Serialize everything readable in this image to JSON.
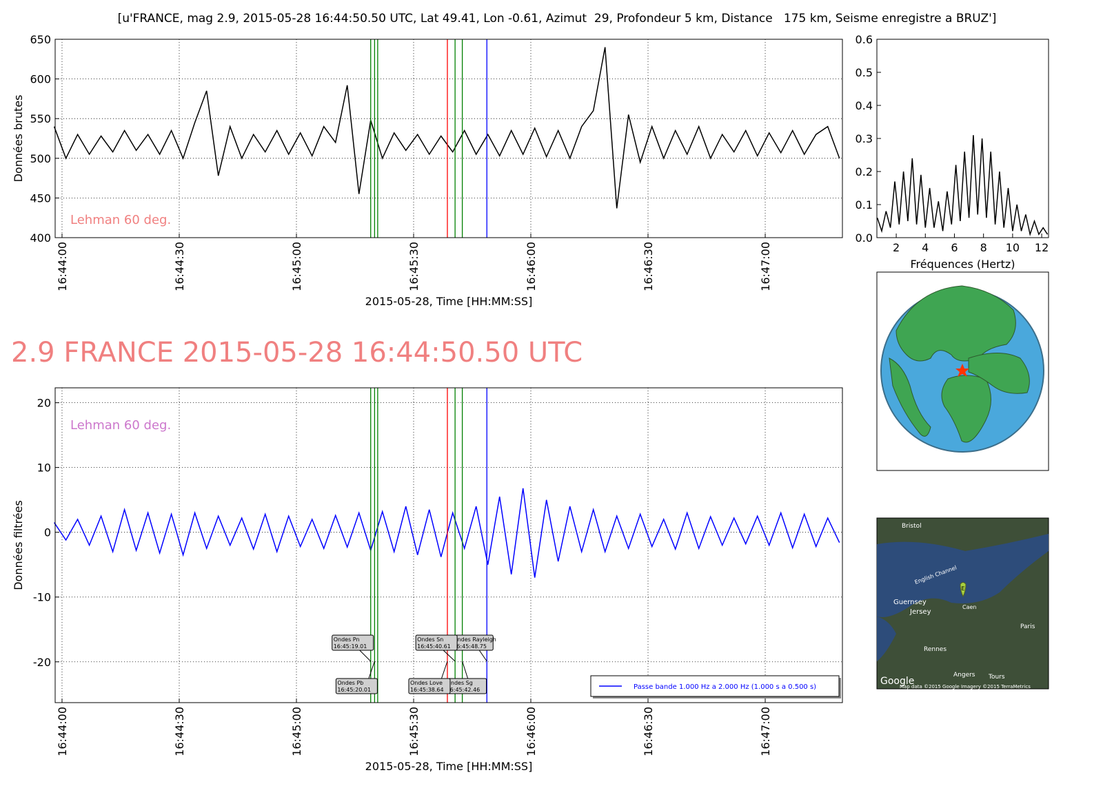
{
  "title": "[u'FRANCE, mag 2.9, 2015-05-28 16:44:50.50 UTC, Lat 49.41, Lon -0.61, Azimut  29, Profondeur 5 km, Distance   175 km, Seisme enregistre a BRUZ']",
  "heading": "2.9 FRANCE 2015-05-28 16:44:50.50 UTC",
  "chart_data": [
    {
      "type": "line",
      "ylabel": "Données brutes",
      "xlabel": "2015-05-28, Time [HH:MM:SS]",
      "xlim": [
        "16:43:58.24",
        "16:47:19.76"
      ],
      "xticks": [
        "16:44:00",
        "16:44:30",
        "16:45:00",
        "16:45:30",
        "16:46:00",
        "16:46:30",
        "16:47:00"
      ],
      "ylim": [
        400,
        650
      ],
      "yticks": [
        400,
        450,
        500,
        550,
        600,
        650
      ],
      "grid": true,
      "annotation": {
        "text": "Lehman 60 deg.",
        "color": "#f08080"
      },
      "x": [
        "16:43:58",
        "16:44:01",
        "16:44:04",
        "16:44:07",
        "16:44:10",
        "16:44:13",
        "16:44:16",
        "16:44:19",
        "16:44:22",
        "16:44:25",
        "16:44:28",
        "16:44:31",
        "16:44:34",
        "16:44:37",
        "16:44:40",
        "16:44:43",
        "16:44:46",
        "16:44:49",
        "16:44:52",
        "16:44:55",
        "16:44:58",
        "16:45:01",
        "16:45:04",
        "16:45:07",
        "16:45:10",
        "16:45:13",
        "16:45:16",
        "16:45:19",
        "16:45:22",
        "16:45:25",
        "16:45:28",
        "16:45:31",
        "16:45:34",
        "16:45:37",
        "16:45:40",
        "16:45:43",
        "16:45:46",
        "16:45:49",
        "16:45:52",
        "16:45:55",
        "16:45:58",
        "16:46:01",
        "16:46:04",
        "16:46:07",
        "16:46:10",
        "16:46:13",
        "16:46:16",
        "16:46:19",
        "16:46:22",
        "16:46:25",
        "16:46:28",
        "16:46:31",
        "16:46:34",
        "16:46:37",
        "16:46:40",
        "16:46:43",
        "16:46:46",
        "16:46:49",
        "16:46:52",
        "16:46:55",
        "16:46:58",
        "16:47:01",
        "16:47:04",
        "16:47:07",
        "16:47:10",
        "16:47:13",
        "16:47:16",
        "16:47:19"
      ],
      "series": [
        {
          "color": "#000000",
          "values": [
            540,
            500,
            530,
            505,
            528,
            508,
            535,
            510,
            530,
            505,
            535,
            500,
            545,
            585,
            478,
            540,
            500,
            530,
            508,
            535,
            505,
            532,
            503,
            540,
            520,
            592,
            455,
            548,
            500,
            532,
            510,
            530,
            505,
            528,
            508,
            535,
            505,
            530,
            503,
            535,
            505,
            538,
            502,
            535,
            500,
            540,
            560,
            640,
            437,
            555,
            495,
            540,
            500,
            535,
            505,
            540,
            500,
            530,
            508,
            535,
            503,
            532,
            507,
            535,
            505,
            530,
            540,
            500
          ]
        }
      ],
      "phases": [
        {
          "x": "16:45:19.01",
          "color": "#008000"
        },
        {
          "x": "16:45:20.01",
          "color": "#008000"
        },
        {
          "x": "16:45:20.80",
          "color": "#008000"
        },
        {
          "x": "16:45:38.64",
          "color": "#ff0000"
        },
        {
          "x": "16:45:40.61",
          "color": "#008000"
        },
        {
          "x": "16:45:42.46",
          "color": "#008000"
        },
        {
          "x": "16:45:48.75",
          "color": "#0000ff"
        }
      ]
    },
    {
      "type": "line",
      "xlabel": "Fréquences (Hertz)",
      "xlim": [
        0.67,
        12.47
      ],
      "xticks": [
        2,
        4,
        6,
        8,
        10,
        12
      ],
      "ylim": [
        0,
        0.6
      ],
      "yticks": [
        {
          "value": 0,
          "label": "0.0"
        },
        0.1,
        0.2,
        0.3,
        0.4,
        0.5,
        0.6
      ],
      "grid": false,
      "x": [
        0.7,
        1.0,
        1.3,
        1.6,
        1.9,
        2.2,
        2.5,
        2.8,
        3.1,
        3.4,
        3.7,
        4.0,
        4.3,
        4.6,
        4.9,
        5.2,
        5.5,
        5.8,
        6.1,
        6.4,
        6.7,
        7.0,
        7.3,
        7.6,
        7.9,
        8.2,
        8.5,
        8.8,
        9.1,
        9.4,
        9.7,
        10.0,
        10.3,
        10.6,
        10.9,
        11.2,
        11.5,
        11.8,
        12.1,
        12.4
      ],
      "series": [
        {
          "color": "#000000",
          "values": [
            0.06,
            0.02,
            0.08,
            0.03,
            0.17,
            0.04,
            0.2,
            0.05,
            0.24,
            0.04,
            0.19,
            0.03,
            0.15,
            0.03,
            0.11,
            0.02,
            0.14,
            0.04,
            0.22,
            0.05,
            0.26,
            0.06,
            0.31,
            0.07,
            0.3,
            0.06,
            0.26,
            0.04,
            0.2,
            0.03,
            0.15,
            0.02,
            0.1,
            0.02,
            0.07,
            0.01,
            0.05,
            0.01,
            0.03,
            0.01
          ]
        }
      ]
    },
    {
      "type": "line",
      "ylabel": "Données filtrées",
      "xlabel": "2015-05-28, Time [HH:MM:SS]",
      "xlim": [
        "16:43:58.24",
        "16:47:19.76"
      ],
      "xticks": [
        "16:44:00",
        "16:44:30",
        "16:45:00",
        "16:45:30",
        "16:46:00",
        "16:46:30",
        "16:47:00"
      ],
      "ylim": [
        -26.3,
        22.3
      ],
      "yticks": [
        -20,
        -10,
        0,
        10,
        20
      ],
      "grid": true,
      "legend": "lower right",
      "annotation": {
        "text": "Lehman 60 deg.",
        "color": "#cc77cc"
      },
      "x": [
        "16:43:58",
        "16:44:01",
        "16:44:04",
        "16:44:07",
        "16:44:10",
        "16:44:13",
        "16:44:16",
        "16:44:19",
        "16:44:22",
        "16:44:25",
        "16:44:28",
        "16:44:31",
        "16:44:34",
        "16:44:37",
        "16:44:40",
        "16:44:43",
        "16:44:46",
        "16:44:49",
        "16:44:52",
        "16:44:55",
        "16:44:58",
        "16:45:01",
        "16:45:04",
        "16:45:07",
        "16:45:10",
        "16:45:13",
        "16:45:16",
        "16:45:19",
        "16:45:22",
        "16:45:25",
        "16:45:28",
        "16:45:31",
        "16:45:34",
        "16:45:37",
        "16:45:40",
        "16:45:43",
        "16:45:46",
        "16:45:49",
        "16:45:52",
        "16:45:55",
        "16:45:58",
        "16:46:01",
        "16:46:04",
        "16:46:07",
        "16:46:10",
        "16:46:13",
        "16:46:16",
        "16:46:19",
        "16:46:22",
        "16:46:25",
        "16:46:28",
        "16:46:31",
        "16:46:34",
        "16:46:37",
        "16:46:40",
        "16:46:43",
        "16:46:46",
        "16:46:49",
        "16:46:52",
        "16:46:55",
        "16:46:58",
        "16:47:01",
        "16:47:04",
        "16:47:07",
        "16:47:10",
        "16:47:13",
        "16:47:16",
        "16:47:19"
      ],
      "series": [
        {
          "name": "Passe bande 1.000 Hz a 2.000 Hz (1.000 s a 0.500 s)",
          "color": "#0000ff",
          "values": [
            1.5,
            -1.2,
            2,
            -2,
            2.5,
            -3,
            3.5,
            -2.8,
            3,
            -3.2,
            2.8,
            -3.5,
            3,
            -2.5,
            2.5,
            -2,
            2.2,
            -2.6,
            2.8,
            -3,
            2.5,
            -2.2,
            2,
            -2.5,
            2.6,
            -2.3,
            3,
            -2.8,
            3.2,
            -3,
            4,
            -3.5,
            3.5,
            -3.8,
            3,
            -2.5,
            4,
            -5,
            5.5,
            -6.5,
            6.8,
            -7,
            5,
            -4.5,
            4,
            -3,
            3.5,
            -3,
            2.5,
            -2.5,
            2.8,
            -2.2,
            2,
            -2.6,
            3,
            -2.5,
            2.4,
            -2,
            2.2,
            -1.8,
            2.5,
            -2,
            3,
            -2.4,
            2.8,
            -2.2,
            2.2,
            -1.6
          ]
        }
      ],
      "phases": [
        {
          "name": "Ondes Pn",
          "x": "16:45:19.01",
          "color": "#008000"
        },
        {
          "name": "Ondes Pb",
          "x": "16:45:20.01",
          "color": "#008000"
        },
        {
          "x": "16:45:20.80",
          "color": "#008000"
        },
        {
          "name": "Ondes Love",
          "x": "16:45:38.64",
          "color": "#ff0000"
        },
        {
          "name": "Ondes Sn",
          "x": "16:45:40.61",
          "color": "#008000"
        },
        {
          "name": "Ondes Sg",
          "x": "16:45:42.46",
          "color": "#008000"
        },
        {
          "name": "Ondes Rayleigh",
          "x": "16:45:48.75",
          "color": "#0000ff"
        }
      ]
    }
  ],
  "map": {
    "labels": [
      "Bristol",
      "English Channel",
      "Guernsey",
      "Jersey",
      "Caen",
      "Paris",
      "Rennes",
      "Angers",
      "Tours",
      "Google",
      "Map data ©2015 Google  Imagery ©2015 TerraMetrics"
    ],
    "marker": "E"
  }
}
